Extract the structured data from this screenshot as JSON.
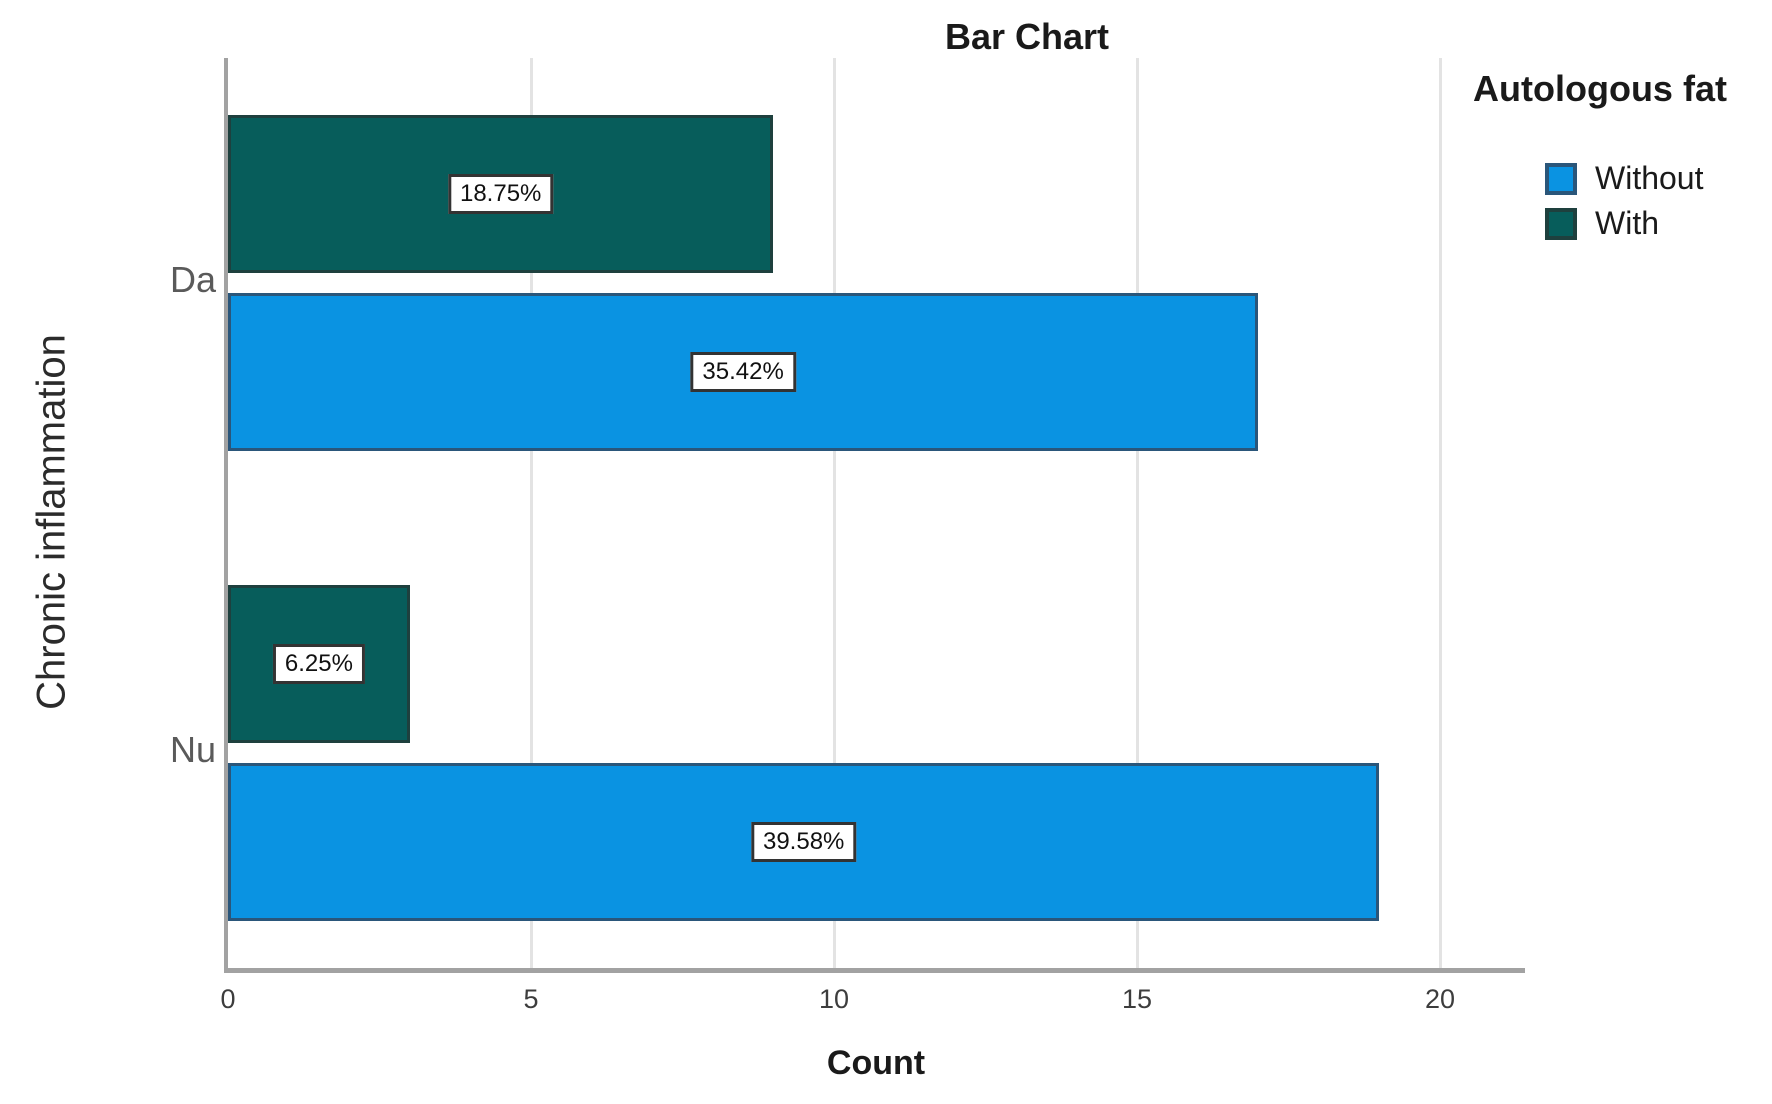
{
  "title": "Bar Chart",
  "axes": {
    "x_label": "Count",
    "y_label": "Chronic inflammation",
    "x_ticks": [
      0,
      5,
      10,
      15,
      20
    ]
  },
  "legend": {
    "title": "Autologous fat",
    "items": [
      {
        "label": "Without",
        "color": "#0A93E2",
        "border": "#2A567A"
      },
      {
        "label": "With",
        "color": "#075D5B",
        "border": "#1E403E"
      }
    ]
  },
  "colors": {
    "without_fill": "#0A93E2",
    "with_fill": "#075D5B",
    "axis_line": "#A2A2A2",
    "gridline": "#E3E3E3",
    "label_box_border": "#333333"
  },
  "chart_data": {
    "type": "bar",
    "orientation": "horizontal",
    "title": "Bar Chart",
    "xlabel": "Count",
    "ylabel": "Chronic inflammation",
    "categories": [
      "Da",
      "Nu"
    ],
    "series": [
      {
        "name": "Without",
        "row_in_group": 1,
        "color": "#0A93E2",
        "border": "#2A567A",
        "values": [
          17,
          19
        ],
        "percent_labels": [
          "35.42%",
          "39.58%"
        ]
      },
      {
        "name": "With",
        "row_in_group": 0,
        "color": "#075D5B",
        "border": "#1E403E",
        "values": [
          9,
          3
        ],
        "percent_labels": [
          "18.75%",
          "6.25%"
        ]
      }
    ],
    "xlim": [
      0,
      21.4
    ],
    "x_ticks": [
      0,
      5,
      10,
      15,
      20
    ],
    "grid": true,
    "legend_position": "top-right"
  }
}
